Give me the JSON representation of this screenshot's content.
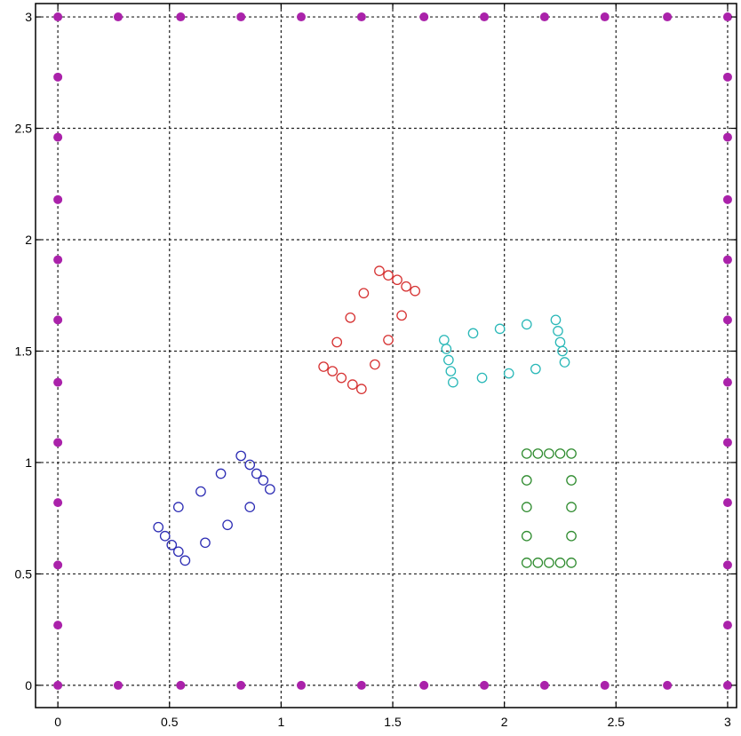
{
  "chart_data": {
    "type": "scatter",
    "title": "",
    "xlabel": "",
    "ylabel": "",
    "xlim": [
      -0.1,
      3.04
    ],
    "ylim": [
      -0.1,
      3.06
    ],
    "grid": true,
    "xticks": [
      0,
      0.5,
      1,
      1.5,
      2,
      2.5,
      3
    ],
    "yticks": [
      0,
      0.5,
      1,
      1.5,
      2,
      2.5,
      3
    ],
    "xtick_labels": [
      "0",
      "0.5",
      "1",
      "1.5",
      "2",
      "2.5",
      "3"
    ],
    "ytick_labels": [
      "0",
      "0.5",
      "1",
      "1.5",
      "2",
      "2.5",
      "3"
    ],
    "series": [
      {
        "color": "#aa22aa",
        "marker": "filled-circle",
        "points": [
          [
            0,
            3
          ],
          [
            0.27,
            3
          ],
          [
            0.55,
            3
          ],
          [
            0.82,
            3
          ],
          [
            1.09,
            3
          ],
          [
            1.36,
            3
          ],
          [
            1.64,
            3
          ],
          [
            1.91,
            3
          ],
          [
            2.18,
            3
          ],
          [
            2.45,
            3
          ],
          [
            2.73,
            3
          ],
          [
            3,
            3
          ],
          [
            0,
            0
          ],
          [
            0.27,
            0
          ],
          [
            0.55,
            0
          ],
          [
            0.82,
            0
          ],
          [
            1.09,
            0
          ],
          [
            1.36,
            0
          ],
          [
            1.64,
            0
          ],
          [
            1.91,
            0
          ],
          [
            2.18,
            0
          ],
          [
            2.45,
            0
          ],
          [
            2.73,
            0
          ],
          [
            3,
            0
          ],
          [
            0,
            0.27
          ],
          [
            0,
            0.54
          ],
          [
            0,
            0.82
          ],
          [
            0,
            1.09
          ],
          [
            0,
            1.36
          ],
          [
            0,
            1.64
          ],
          [
            0,
            1.91
          ],
          [
            0,
            2.18
          ],
          [
            0,
            2.46
          ],
          [
            0,
            2.73
          ],
          [
            3,
            0.27
          ],
          [
            3,
            0.54
          ],
          [
            3,
            0.82
          ],
          [
            3,
            1.09
          ],
          [
            3,
            1.36
          ],
          [
            3,
            1.64
          ],
          [
            3,
            1.91
          ],
          [
            3,
            2.18
          ],
          [
            3,
            2.46
          ],
          [
            3,
            2.73
          ]
        ]
      },
      {
        "color": "#2d2db4",
        "marker": "open-circle",
        "points": [
          [
            0.45,
            0.71
          ],
          [
            0.48,
            0.67
          ],
          [
            0.51,
            0.63
          ],
          [
            0.54,
            0.6
          ],
          [
            0.57,
            0.56
          ],
          [
            0.54,
            0.8
          ],
          [
            0.64,
            0.87
          ],
          [
            0.73,
            0.95
          ],
          [
            0.82,
            1.03
          ],
          [
            0.86,
            0.99
          ],
          [
            0.89,
            0.95
          ],
          [
            0.92,
            0.92
          ],
          [
            0.95,
            0.88
          ],
          [
            0.66,
            0.64
          ],
          [
            0.76,
            0.72
          ],
          [
            0.86,
            0.8
          ]
        ]
      },
      {
        "color": "#d63232",
        "marker": "open-circle",
        "points": [
          [
            1.19,
            1.43
          ],
          [
            1.23,
            1.41
          ],
          [
            1.27,
            1.38
          ],
          [
            1.32,
            1.35
          ],
          [
            1.36,
            1.33
          ],
          [
            1.25,
            1.54
          ],
          [
            1.31,
            1.65
          ],
          [
            1.37,
            1.76
          ],
          [
            1.44,
            1.86
          ],
          [
            1.48,
            1.84
          ],
          [
            1.52,
            1.82
          ],
          [
            1.56,
            1.79
          ],
          [
            1.6,
            1.77
          ],
          [
            1.42,
            1.44
          ],
          [
            1.48,
            1.55
          ],
          [
            1.54,
            1.66
          ]
        ]
      },
      {
        "color": "#2ab8b8",
        "marker": "open-circle",
        "points": [
          [
            1.73,
            1.55
          ],
          [
            1.74,
            1.51
          ],
          [
            1.75,
            1.46
          ],
          [
            1.76,
            1.41
          ],
          [
            1.77,
            1.36
          ],
          [
            1.86,
            1.58
          ],
          [
            1.98,
            1.6
          ],
          [
            2.1,
            1.62
          ],
          [
            2.23,
            1.64
          ],
          [
            2.24,
            1.59
          ],
          [
            2.25,
            1.54
          ],
          [
            2.26,
            1.5
          ],
          [
            2.27,
            1.45
          ],
          [
            1.9,
            1.38
          ],
          [
            2.02,
            1.4
          ],
          [
            2.14,
            1.42
          ]
        ]
      },
      {
        "color": "#2e8b2e",
        "marker": "open-circle",
        "points": [
          [
            2.1,
            1.04
          ],
          [
            2.15,
            1.04
          ],
          [
            2.2,
            1.04
          ],
          [
            2.25,
            1.04
          ],
          [
            2.3,
            1.04
          ],
          [
            2.1,
            0.55
          ],
          [
            2.15,
            0.55
          ],
          [
            2.2,
            0.55
          ],
          [
            2.25,
            0.55
          ],
          [
            2.3,
            0.55
          ],
          [
            2.1,
            0.92
          ],
          [
            2.1,
            0.8
          ],
          [
            2.1,
            0.67
          ],
          [
            2.3,
            0.92
          ],
          [
            2.3,
            0.8
          ],
          [
            2.3,
            0.67
          ]
        ]
      }
    ]
  }
}
